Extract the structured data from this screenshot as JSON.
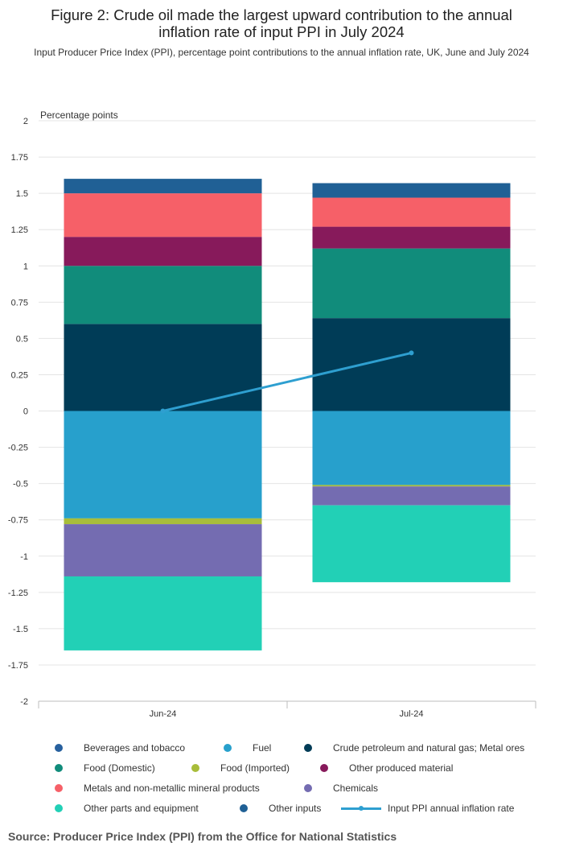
{
  "title": "Figure 2: Crude oil made the largest upward contribution to the annual\ninflation rate of input PPI in July 2024",
  "subtitle": "Input Producer Price Index (PPI), percentage point contributions to the annual inflation rate, UK, June and July 2024",
  "source": "Source: Producer Price Index (PPI) from the Office for National Statistics",
  "chart_data": {
    "type": "bar",
    "stacked": true,
    "categories": [
      "Jun-24",
      "Jul-24"
    ],
    "ylabel": "Percentage points",
    "ylim": [
      -2,
      2
    ],
    "yticks": [
      2,
      1.75,
      1.5,
      1.25,
      1,
      0.75,
      0.5,
      0.25,
      0,
      -0.25,
      -0.5,
      -0.75,
      -1,
      -1.25,
      -1.5,
      -1.75,
      -2
    ],
    "ytick_labels": [
      "2",
      "1.75",
      "1.5",
      "1.25",
      "1",
      "0.75",
      "0.5",
      "0.25",
      "0",
      "-0.25",
      "-0.5",
      "-0.75",
      "-1",
      "-1.25",
      "-1.5",
      "-1.75",
      "-2"
    ],
    "grid": true,
    "legend_position": "bottom",
    "series": [
      {
        "name": "Beverages and tobacco",
        "color": "#27609e",
        "values": [
          0.0,
          0.0
        ]
      },
      {
        "name": "Fuel",
        "color": "#27a0cc",
        "values": [
          -0.74,
          -0.51
        ]
      },
      {
        "name": "Crude petroleum and natural gas; Metal ores",
        "color": "#003c57",
        "values": [
          0.6,
          0.64
        ]
      },
      {
        "name": "Food (Domestic)",
        "color": "#118c7b",
        "values": [
          0.4,
          0.48
        ]
      },
      {
        "name": "Food (Imported)",
        "color": "#a8bd3a",
        "values": [
          -0.04,
          -0.01
        ]
      },
      {
        "name": "Other produced material",
        "color": "#871a5b",
        "values": [
          0.2,
          0.15
        ]
      },
      {
        "name": "Metals and non-metallic mineral products",
        "color": "#f66068",
        "values": [
          0.3,
          0.2
        ]
      },
      {
        "name": "Chemicals",
        "color": "#746cb1",
        "values": [
          -0.36,
          -0.13
        ]
      },
      {
        "name": "Other parts and equipment",
        "color": "#22d0b6",
        "values": [
          -0.51,
          -0.53
        ]
      },
      {
        "name": "Other inputs",
        "color": "#206095",
        "values": [
          0.1,
          0.1
        ]
      }
    ],
    "line_series": {
      "name": "Input PPI annual inflation rate",
      "color": "#2e9fd0",
      "values": [
        0.0,
        0.4
      ]
    }
  }
}
